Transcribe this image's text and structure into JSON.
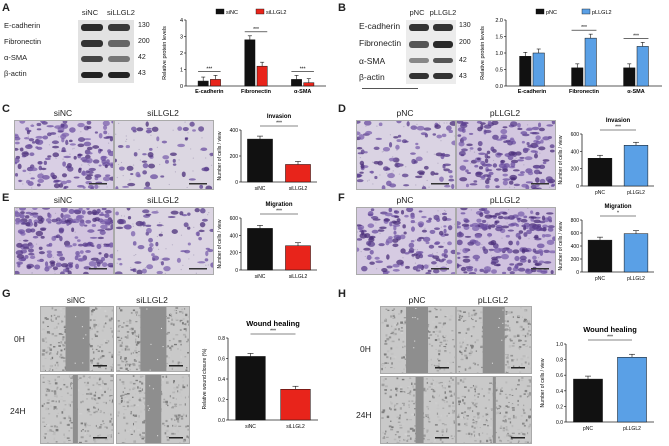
{
  "panels": {
    "A": {
      "letter": "A",
      "lanes": [
        "siNC",
        "siLLGL2"
      ],
      "blots": [
        {
          "name": "E-cadherin",
          "kda": "130"
        },
        {
          "name": "Fibronectin",
          "kda": "200"
        },
        {
          "name": "α-SMA",
          "kda": "42"
        },
        {
          "name": "β-actin",
          "kda": "43"
        }
      ],
      "chart_data": {
        "type": "bar",
        "categories": [
          "E-cadherin",
          "Fibronectin",
          "α-SMA"
        ],
        "series": [
          {
            "name": "siNC",
            "values": [
              0.3,
              2.8,
              0.4
            ],
            "color": "#111111"
          },
          {
            "name": "siLLGL2",
            "values": [
              0.4,
              1.2,
              0.2
            ],
            "color": "#e8241b"
          }
        ],
        "ylabel": "Relative protein levels",
        "ylim": [
          0,
          4
        ],
        "yticks": [
          "0",
          "1",
          "2",
          "3",
          "4"
        ],
        "significance": [
          "***",
          "***",
          "***"
        ]
      }
    },
    "B": {
      "letter": "B",
      "lanes": [
        "pNC",
        "pLLGL2"
      ],
      "blots": [
        {
          "name": "E-cadherin",
          "kda": "130"
        },
        {
          "name": "Fibronectin",
          "kda": "200"
        },
        {
          "name": "α-SMA",
          "kda": "42"
        },
        {
          "name": "β-actin",
          "kda": "43"
        }
      ],
      "chart_data": {
        "type": "bar",
        "categories": [
          "E-cadherin",
          "Fibronectin",
          "α-SMA"
        ],
        "series": [
          {
            "name": "pNC",
            "values": [
              0.9,
              0.55,
              0.55
            ],
            "color": "#111111"
          },
          {
            "name": "pLLGL2",
            "values": [
              1.0,
              1.45,
              1.2
            ],
            "color": "#5aa0e6"
          }
        ],
        "ylabel": "Relative protein levels",
        "ylim": [
          0,
          2.0
        ],
        "yticks": [
          "0.0",
          "0.5",
          "1.0",
          "1.5",
          "2.0"
        ],
        "significance": [
          "",
          "***",
          "***"
        ]
      }
    },
    "C": {
      "letter": "C",
      "images": [
        "siNC",
        "siLLGL2"
      ],
      "chart_data": {
        "type": "bar",
        "title": "Invasion",
        "categories": [
          "siNC",
          "siLLGL2"
        ],
        "values": [
          330,
          135
        ],
        "colors": [
          "#111111",
          "#e8241b"
        ],
        "ylabel": "Number of cells / view",
        "ylim": [
          0,
          400
        ],
        "yticks": [
          "0",
          "200",
          "400"
        ],
        "significance": "***"
      }
    },
    "D": {
      "letter": "D",
      "images": [
        "pNC",
        "pLLGL2"
      ],
      "chart_data": {
        "type": "bar",
        "title": "Invasion",
        "categories": [
          "pNC",
          "pLLGL2"
        ],
        "values": [
          320,
          470
        ],
        "colors": [
          "#111111",
          "#5aa0e6"
        ],
        "ylabel": "Number of cells / view",
        "ylim": [
          0,
          600
        ],
        "yticks": [
          "0",
          "200",
          "400",
          "600"
        ],
        "significance": "***"
      }
    },
    "E": {
      "letter": "E",
      "images": [
        "siNC",
        "siLLGL2"
      ],
      "chart_data": {
        "type": "bar",
        "title": "Migration",
        "categories": [
          "siNC",
          "siLLGL2"
        ],
        "values": [
          480,
          280
        ],
        "colors": [
          "#111111",
          "#e8241b"
        ],
        "ylabel": "Number of cells / view",
        "ylim": [
          0,
          600
        ],
        "yticks": [
          "0",
          "200",
          "400",
          "600"
        ],
        "significance": "***"
      }
    },
    "F": {
      "letter": "F",
      "images": [
        "pNC",
        "pLLGL2"
      ],
      "chart_data": {
        "type": "bar",
        "title": "Migration",
        "categories": [
          "pNC",
          "pLLGL2"
        ],
        "values": [
          490,
          590
        ],
        "colors": [
          "#111111",
          "#5aa0e6"
        ],
        "ylabel": "Number of cells / view",
        "ylim": [
          0,
          800
        ],
        "yticks": [
          "0",
          "200",
          "400",
          "600",
          "800"
        ],
        "significance": "*"
      }
    },
    "G": {
      "letter": "G",
      "images": [
        "siNC",
        "siLLGL2"
      ],
      "rows": [
        "0H",
        "24H"
      ],
      "chart_data": {
        "type": "bar",
        "title": "Wound healing",
        "categories": [
          "siNC",
          "siLLGL2"
        ],
        "values": [
          0.62,
          0.3
        ],
        "colors": [
          "#111111",
          "#e8241b"
        ],
        "ylabel": "Relative wound closure (%)",
        "ylim": [
          0,
          0.8
        ],
        "yticks": [
          "0.0",
          "0.2",
          "0.4",
          "0.6",
          "0.8"
        ],
        "significance": "***"
      }
    },
    "H": {
      "letter": "H",
      "images": [
        "pNC",
        "pLLGL2"
      ],
      "rows": [
        "0H",
        "24H"
      ],
      "chart_data": {
        "type": "bar",
        "title": "Wound healing",
        "categories": [
          "pNC",
          "pLLGL2"
        ],
        "values": [
          0.55,
          0.83
        ],
        "colors": [
          "#111111",
          "#5aa0e6"
        ],
        "ylabel": "Number of cells / view",
        "ylim": [
          0,
          1.0
        ],
        "yticks": [
          "0.0",
          "0.2",
          "0.4",
          "0.6",
          "0.8",
          "1.0"
        ],
        "significance": "***"
      }
    }
  }
}
